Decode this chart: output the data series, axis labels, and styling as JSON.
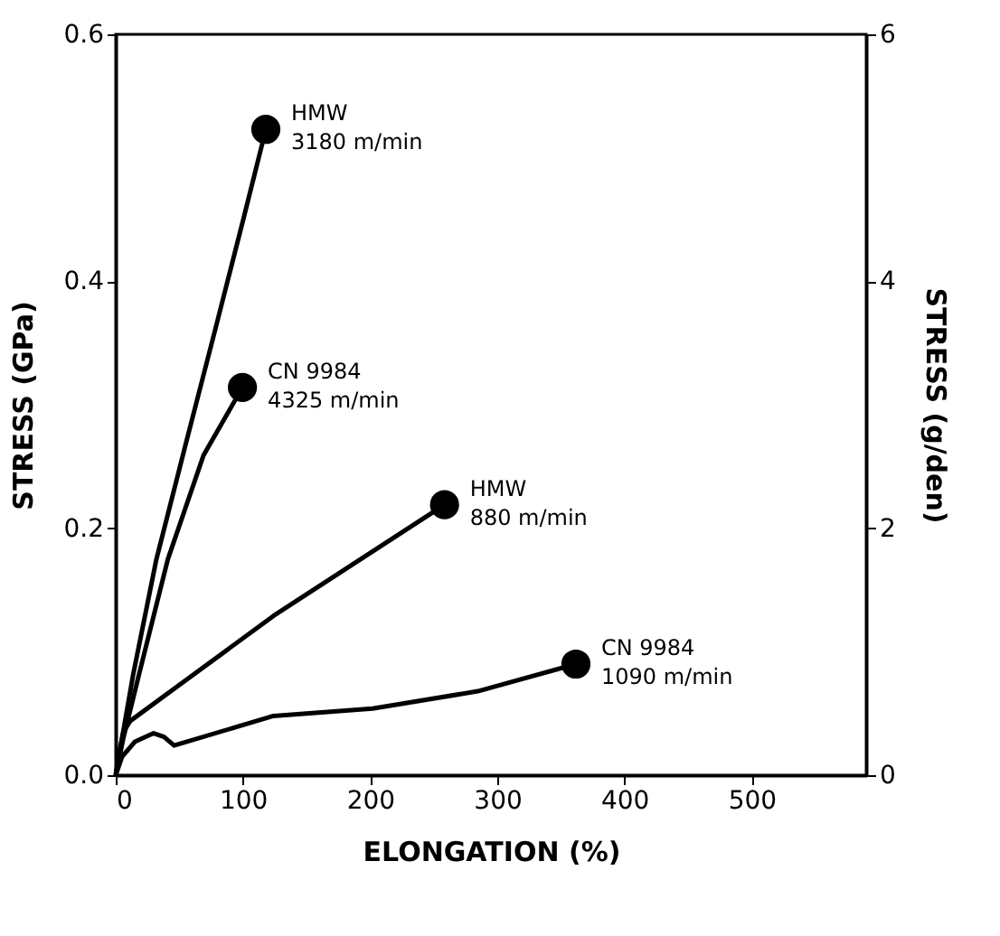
{
  "chart_data": {
    "type": "line",
    "xlabel": "ELONGATION (%)",
    "ylabel": "STRESS (GPa)",
    "y2label": "STRESS (g/den)",
    "xlim": [
      0,
      590
    ],
    "xticks": [
      0,
      100,
      200,
      300,
      400,
      500
    ],
    "ylim": [
      0,
      0.6
    ],
    "yticks": [
      {
        "value": 0,
        "label": "0.0"
      },
      {
        "value": 0.2,
        "label": "0.2"
      },
      {
        "value": 0.4,
        "label": "0.4"
      },
      {
        "value": 0.6,
        "label": "0.6"
      }
    ],
    "y2lim": [
      0,
      6
    ],
    "y2ticks": [
      0,
      2,
      4,
      6
    ],
    "grid": false,
    "line_style": "solid",
    "marker": "none",
    "series": [
      {
        "name": "HMW\n3180 m/min",
        "color": "#000000",
        "x": [
          0,
          5,
          13.8,
          32,
          55,
          78,
          101,
          118
        ],
        "values": [
          0,
          0.03,
          0.082,
          0.175,
          0.268,
          0.36,
          0.453,
          0.523
        ]
      },
      {
        "name": "CN 9984\n4325 m/min",
        "color": "#000000",
        "x": [
          0,
          6,
          18.4,
          41,
          69,
          99.6
        ],
        "values": [
          0,
          0.03,
          0.082,
          0.175,
          0.259,
          0.314
        ]
      },
      {
        "name": "HMW\n880 m/min",
        "color": "#000000",
        "x": [
          0,
          3,
          6,
          11.5,
          124,
          258.5
        ],
        "values": [
          0,
          0.02,
          0.035,
          0.044,
          0.129,
          0.219
        ]
      },
      {
        "name": "CN 9984\n1090 m/min",
        "color": "#000000",
        "x": [
          0,
          5,
          15,
          29.8,
          38,
          45.9,
          124,
          202,
          284.7,
          361.8
        ],
        "values": [
          0,
          0.015,
          0.027,
          0.034,
          0.031,
          0.024,
          0.048,
          0.054,
          0.068,
          0.09
        ]
      },
      {
        "type": "scatter",
        "marker": "circle",
        "color": "#000000",
        "x": [
          118,
          99.6,
          258.5,
          361.8
        ],
        "values": [
          0.523,
          0.314,
          0.219,
          0.09
        ]
      }
    ]
  }
}
